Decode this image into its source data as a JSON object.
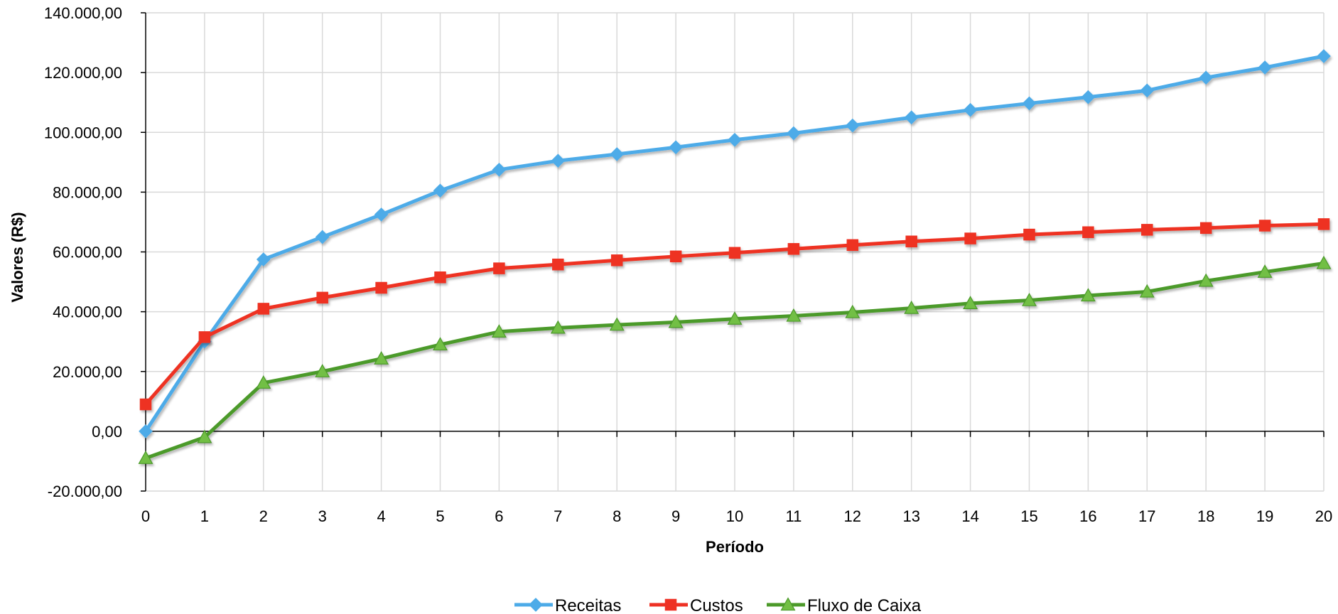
{
  "chart_data": {
    "type": "line",
    "title": "",
    "xlabel": "Período",
    "ylabel": "Valores (R$)",
    "x": [
      0,
      1,
      2,
      3,
      4,
      5,
      6,
      7,
      8,
      9,
      10,
      11,
      12,
      13,
      14,
      15,
      16,
      17,
      18,
      19,
      20
    ],
    "ylim": [
      -20000,
      140000
    ],
    "ytick_values": [
      -20000,
      0,
      20000,
      40000,
      60000,
      80000,
      100000,
      120000,
      140000
    ],
    "ytick_labels": [
      "-20.000,00",
      "0,00",
      "20.000,00",
      "40.000,00",
      "60.000,00",
      "80.000,00",
      "100.000,00",
      "120.000,00",
      "140.000,00"
    ],
    "negative_tick_color": "#ff0000",
    "grid": true,
    "legend_position": "bottom",
    "series": [
      {
        "name": "Receitas",
        "color": "#4dabe8",
        "marker": "diamond",
        "values": [
          0,
          30000,
          57500,
          65000,
          72500,
          80500,
          87500,
          90500,
          92700,
          95000,
          97500,
          99700,
          102300,
          105000,
          107500,
          109700,
          111800,
          114000,
          118300,
          121700,
          125500
        ]
      },
      {
        "name": "Custos",
        "color": "#ee3124",
        "marker": "square",
        "values": [
          9000,
          31500,
          41000,
          44700,
          48000,
          51500,
          54500,
          55800,
          57200,
          58500,
          59700,
          61000,
          62300,
          63500,
          64500,
          65800,
          66600,
          67400,
          68000,
          68800,
          69300
        ]
      },
      {
        "name": "Fluxo de Caixa",
        "color": "#4c9a2a",
        "marker_fill": "#72bf44",
        "marker": "triangle",
        "values": [
          -9000,
          -2000,
          16200,
          20000,
          24300,
          29000,
          33300,
          34600,
          35600,
          36500,
          37600,
          38600,
          39800,
          41200,
          42800,
          43800,
          45400,
          46700,
          50300,
          53300,
          56200
        ]
      }
    ]
  }
}
